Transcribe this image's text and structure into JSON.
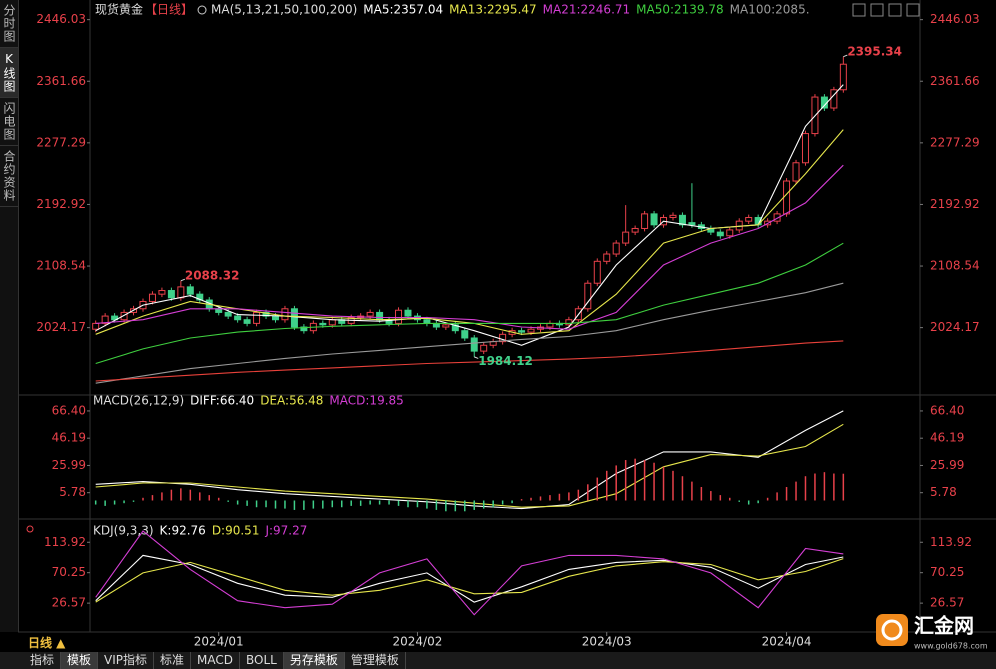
{
  "sidebar": [
    "分时图",
    "K线图",
    "闪电图",
    "合约资料"
  ],
  "header": {
    "symbol": "现货黄金",
    "period": "【日线】"
  },
  "chart_data": [
    {
      "type": "candlestick",
      "title": "MA(5,13,21,50,100,200)",
      "up_color": "#e8414a",
      "down_color": "#3fd08a",
      "open": [
        2022,
        2030,
        2040,
        2035,
        2045,
        2050,
        2060,
        2070,
        2075,
        2065,
        2080,
        2070,
        2062,
        2050,
        2045,
        2040,
        2035,
        2030,
        2045,
        2040,
        2035,
        2050,
        2025,
        2020,
        2030,
        2028,
        2035,
        2030,
        2038,
        2040,
        2045,
        2035,
        2030,
        2048,
        2040,
        2035,
        2030,
        2025,
        2028,
        2020,
        2010,
        1992,
        2000,
        2005,
        2015,
        2020,
        2018,
        2022,
        2025,
        2030,
        2028,
        2035,
        2050,
        2085,
        2115,
        2125,
        2140,
        2155,
        2160,
        2180,
        2165,
        2175,
        2178,
        2168,
        2165,
        2160,
        2155,
        2150,
        2158,
        2170,
        2175,
        2165,
        2170,
        2180,
        2225,
        2250,
        2290,
        2340,
        2325,
        2350
      ],
      "high": [
        2034,
        2044,
        2044,
        2049,
        2054,
        2064,
        2074,
        2079,
        2079,
        2088.32,
        2084,
        2074,
        2066,
        2054,
        2049,
        2044,
        2039,
        2049,
        2049,
        2044,
        2054,
        2054,
        2029,
        2034,
        2034,
        2039,
        2039,
        2042,
        2044,
        2049,
        2049,
        2039,
        2052,
        2052,
        2044,
        2039,
        2034,
        2032,
        2032,
        2024,
        2014,
        2004,
        2009,
        2019,
        2024,
        2024,
        2026,
        2029,
        2034,
        2034,
        2039,
        2054,
        2089,
        2119,
        2129,
        2144,
        2192,
        2164,
        2184,
        2184,
        2179,
        2182,
        2182,
        2222,
        2169,
        2164,
        2159,
        2162,
        2174,
        2179,
        2179,
        2174,
        2184,
        2229,
        2254,
        2294,
        2344,
        2344,
        2354,
        2395.34
      ],
      "low": [
        2018,
        2026,
        2031,
        2031,
        2041,
        2046,
        2056,
        2066,
        2061,
        2061,
        2066,
        2058,
        2046,
        2041,
        2036,
        2031,
        2026,
        2026,
        2036,
        2031,
        2031,
        2021,
        2016,
        2016,
        2024,
        2024,
        2026,
        2026,
        2034,
        2036,
        2031,
        2026,
        2026,
        2036,
        2031,
        2026,
        2021,
        2021,
        2016,
        2006,
        1984.12,
        1988,
        1996,
        2001,
        2011,
        2014,
        2014,
        2018,
        2021,
        2024,
        2024,
        2031,
        2046,
        2081,
        2111,
        2121,
        2136,
        2151,
        2156,
        2161,
        2161,
        2171,
        2161,
        2161,
        2156,
        2151,
        2146,
        2146,
        2154,
        2166,
        2161,
        2161,
        2166,
        2176,
        2221,
        2246,
        2286,
        2321,
        2321,
        2346
      ],
      "close": [
        2030,
        2040,
        2035,
        2045,
        2050,
        2060,
        2070,
        2075,
        2065,
        2080,
        2070,
        2062,
        2050,
        2045,
        2040,
        2035,
        2030,
        2045,
        2040,
        2035,
        2050,
        2025,
        2020,
        2030,
        2028,
        2035,
        2030,
        2038,
        2040,
        2045,
        2035,
        2030,
        2048,
        2040,
        2035,
        2030,
        2025,
        2028,
        2020,
        2010,
        1992,
        2000,
        2005,
        2015,
        2020,
        2018,
        2022,
        2025,
        2030,
        2028,
        2035,
        2050,
        2085,
        2115,
        2125,
        2140,
        2155,
        2160,
        2180,
        2165,
        2175,
        2178,
        2165,
        2165,
        2160,
        2155,
        2150,
        2158,
        2170,
        2175,
        2165,
        2170,
        2180,
        2225,
        2250,
        2290,
        2340,
        2325,
        2350,
        2385
      ],
      "xlim": [
        -0.6,
        87.1
      ],
      "xticks": [
        {
          "value": 13,
          "label": "2024/01"
        },
        {
          "value": 34,
          "label": "2024/02"
        },
        {
          "value": 54,
          "label": "2024/03"
        },
        {
          "value": 73,
          "label": "2024/04"
        }
      ],
      "ylim": [
        1936,
        2462
      ],
      "yticks": [
        2446.03,
        2361.66,
        2277.29,
        2192.92,
        2108.54,
        2024.17
      ],
      "series": [
        {
          "name": "MA5:2357.04",
          "color": "#ffffff",
          "x": [
            0,
            5,
            10,
            15,
            20,
            25,
            30,
            35,
            40,
            45,
            50,
            55,
            60,
            65,
            70,
            75,
            79
          ],
          "values": [
            2020,
            2055,
            2068,
            2042,
            2040,
            2035,
            2033,
            2038,
            2020,
            2000,
            2025,
            2110,
            2170,
            2160,
            2165,
            2300,
            2357.04
          ]
        },
        {
          "name": "MA13:2295.47",
          "color": "#e6e64c",
          "x": [
            0,
            5,
            10,
            15,
            20,
            25,
            30,
            35,
            40,
            45,
            50,
            55,
            60,
            65,
            70,
            75,
            79
          ],
          "values": [
            2015,
            2040,
            2060,
            2050,
            2040,
            2038,
            2035,
            2037,
            2030,
            2015,
            2020,
            2070,
            2140,
            2160,
            2165,
            2235,
            2295.47
          ]
        },
        {
          "name": "MA21:2246.71",
          "color": "#d43ed4",
          "x": [
            0,
            5,
            10,
            15,
            20,
            25,
            30,
            35,
            40,
            45,
            50,
            55,
            60,
            65,
            70,
            75,
            79
          ],
          "values": [
            2030,
            2035,
            2050,
            2050,
            2045,
            2040,
            2038,
            2038,
            2035,
            2025,
            2022,
            2045,
            2110,
            2140,
            2160,
            2195,
            2246.71
          ]
        },
        {
          "name": "MA50:2139.78",
          "color": "#3fcf3f",
          "x": [
            0,
            5,
            10,
            15,
            20,
            25,
            30,
            35,
            40,
            45,
            50,
            55,
            60,
            65,
            70,
            75,
            79
          ],
          "values": [
            1975,
            1995,
            2010,
            2018,
            2023,
            2026,
            2028,
            2030,
            2030,
            2030,
            2030,
            2035,
            2055,
            2070,
            2085,
            2110,
            2139.78
          ]
        },
        {
          "name": "MA100:2085.",
          "color": "#9a9a9a",
          "x": [
            0,
            5,
            10,
            15,
            20,
            25,
            30,
            35,
            40,
            45,
            50,
            55,
            60,
            65,
            70,
            75,
            79
          ],
          "values": [
            1948,
            1958,
            1968,
            1975,
            1982,
            1988,
            1993,
            1998,
            2003,
            2008,
            2012,
            2020,
            2035,
            2048,
            2060,
            2072,
            2085
          ]
        },
        {
          "color": "#e8413a",
          "x": [
            0,
            5,
            10,
            15,
            20,
            25,
            30,
            35,
            40,
            45,
            50,
            55,
            60,
            65,
            70,
            75,
            79
          ],
          "values": [
            1951,
            1955,
            1959,
            1963,
            1966,
            1969,
            1972,
            1975,
            1977,
            1979,
            1981,
            1984,
            1988,
            1993,
            1998,
            2003,
            2006
          ]
        }
      ]
    },
    {
      "type": "macd",
      "title": "MACD(26,12,9)",
      "up_color": "#e8414a",
      "down_color": "#3fd08a",
      "ylim": [
        -11.5,
        76
      ],
      "yticks": [
        {
          "value": 66.4,
          "label": "66.40"
        },
        46.19,
        25.99,
        5.78
      ],
      "series": [
        {
          "name": "DIFF:66.40",
          "color": "#ffffff",
          "x": [
            0,
            5,
            10,
            15,
            20,
            25,
            30,
            35,
            40,
            45,
            50,
            55,
            60,
            65,
            70,
            75,
            79
          ],
          "values": [
            12,
            14,
            12,
            8,
            5,
            3,
            1,
            -1,
            -4,
            -6,
            -3,
            20,
            36,
            36,
            32,
            52,
            66.4
          ]
        },
        {
          "name": "DEA:56.48",
          "color": "#e6e64c",
          "x": [
            0,
            5,
            10,
            15,
            20,
            25,
            30,
            35,
            40,
            45,
            50,
            55,
            60,
            65,
            70,
            75,
            79
          ],
          "values": [
            10,
            13,
            13,
            10,
            7,
            5,
            3,
            1,
            -2,
            -5,
            -4,
            5,
            25,
            34,
            33,
            40,
            56.48
          ]
        },
        {
          "name": "MACD:19.85",
          "color": "#d43ed4",
          "type": "bar",
          "values": [
            -3,
            -4,
            -3,
            -2,
            -1,
            2,
            4,
            6,
            8,
            9,
            8,
            6,
            4,
            2,
            -1,
            -3,
            -4,
            -5,
            -5,
            -6,
            -6,
            -7,
            -7,
            -6,
            -6,
            -5,
            -5,
            -4,
            -4,
            -3,
            -3,
            -3,
            -4,
            -5,
            -5,
            -6,
            -7,
            -8,
            -8,
            -8,
            -7,
            -6,
            -5,
            -3,
            -2,
            1,
            2,
            3,
            4,
            5,
            6,
            8,
            12,
            17,
            22,
            26,
            30,
            31,
            30,
            28,
            25,
            22,
            18,
            14,
            10,
            7,
            4,
            2,
            -1,
            -3,
            -2,
            2,
            6,
            10,
            14,
            18,
            20,
            21,
            20,
            19.85
          ]
        }
      ]
    },
    {
      "type": "line",
      "title": "KDJ(9,3,3)",
      "ylim": [
        -12,
        143
      ],
      "yticks": [
        113.92,
        70.25,
        26.57
      ],
      "series": [
        {
          "name": "K:92.76",
          "color": "#ffffff",
          "x": [
            0,
            5,
            10,
            15,
            20,
            25,
            30,
            35,
            40,
            45,
            50,
            55,
            60,
            65,
            70,
            75,
            79
          ],
          "values": [
            30,
            95,
            82,
            55,
            38,
            35,
            55,
            70,
            28,
            50,
            75,
            85,
            88,
            78,
            48,
            82,
            92.76
          ]
        },
        {
          "name": "D:90.51",
          "color": "#e6e64c",
          "x": [
            0,
            5,
            10,
            15,
            20,
            25,
            30,
            35,
            40,
            45,
            50,
            55,
            60,
            65,
            70,
            75,
            79
          ],
          "values": [
            28,
            70,
            85,
            65,
            45,
            38,
            45,
            60,
            40,
            42,
            65,
            80,
            86,
            82,
            60,
            72,
            90.51
          ]
        },
        {
          "name": "J:97.27",
          "color": "#d43ed4",
          "x": [
            0,
            5,
            10,
            15,
            20,
            25,
            30,
            35,
            40,
            45,
            50,
            55,
            60,
            65,
            70,
            75,
            79
          ],
          "values": [
            35,
            130,
            75,
            30,
            20,
            25,
            70,
            90,
            10,
            80,
            95,
            95,
            90,
            70,
            20,
            105,
            97.27
          ]
        }
      ]
    }
  ],
  "footer": {
    "period": "日线 ▲",
    "tabs": [
      "指标",
      "模板",
      "VIP指标",
      "标准",
      "MACD",
      "BOLL",
      "另存模板",
      "管理模板"
    ]
  },
  "logo": {
    "name": "汇金网",
    "url": "www.gold678.com"
  }
}
